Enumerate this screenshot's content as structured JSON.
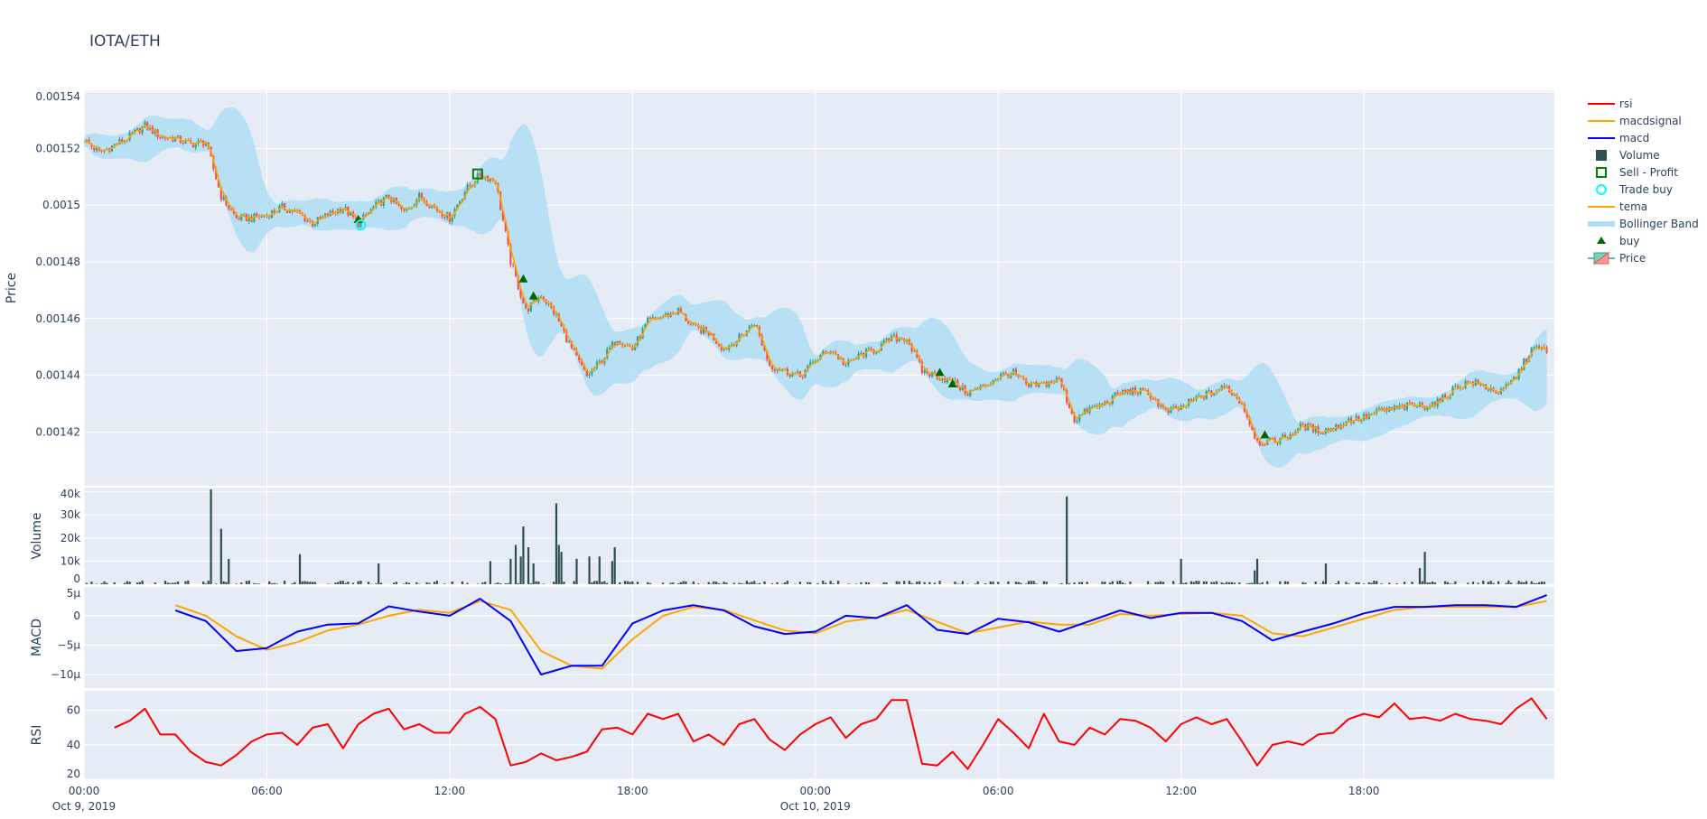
{
  "title": "IOTA/ETH",
  "colors": {
    "plot_bg": "#e5ecf6",
    "grid": "#ffffff",
    "candle_up": "#26a69a",
    "candle_down": "#ef5350",
    "tema": "#ffa500",
    "bollinger": "#b3dff5",
    "volume": "#2f4f4f",
    "macd": "#0000ff",
    "macdsignal": "#ffa500",
    "rsi": "#ff0000",
    "buy": "#006400",
    "sell_profit": "#008000",
    "trade_buy": "#00ffff"
  },
  "legend": [
    {
      "name": "rsi",
      "symbol": "line",
      "color": "#ff0000"
    },
    {
      "name": "macdsignal",
      "symbol": "line",
      "color": "#ffa500"
    },
    {
      "name": "macd",
      "symbol": "line",
      "color": "#0000ff"
    },
    {
      "name": "Volume",
      "symbol": "square-filled",
      "color": "#2f4f4f"
    },
    {
      "name": "Sell - Profit",
      "symbol": "square-open",
      "color": "#008000"
    },
    {
      "name": "Trade buy",
      "symbol": "circle-open",
      "color": "#00ffff"
    },
    {
      "name": "tema",
      "symbol": "line",
      "color": "#ffa500"
    },
    {
      "name": "Bollinger Band",
      "symbol": "band",
      "color": "#b3dff5"
    },
    {
      "name": "buy",
      "symbol": "triangle-up",
      "color": "#006400"
    },
    {
      "name": "Price",
      "symbol": "candlestick",
      "color": "#26a69a"
    }
  ],
  "chart_data": {
    "type": "candlestick",
    "title": "IOTA/ETH",
    "x_range": [
      "2019-10-09 00:00",
      "2019-10-11 00:15"
    ],
    "x_ticks": [
      {
        "time": "2019-10-09 00:00",
        "label": "00:00",
        "sub": "Oct 9, 2019"
      },
      {
        "time": "2019-10-09 06:00",
        "label": "06:00"
      },
      {
        "time": "2019-10-09 12:00",
        "label": "12:00"
      },
      {
        "time": "2019-10-09 18:00",
        "label": "18:00"
      },
      {
        "time": "2019-10-10 00:00",
        "label": "00:00",
        "sub": "Oct 10, 2019"
      },
      {
        "time": "2019-10-10 06:00",
        "label": "06:00"
      },
      {
        "time": "2019-10-10 12:00",
        "label": "12:00"
      },
      {
        "time": "2019-10-10 18:00",
        "label": "18:00"
      }
    ],
    "grid": true,
    "legend_position": "right",
    "panels": {
      "price": {
        "ylabel": "Price",
        "ylim": [
          0.001401,
          0.0015405
        ],
        "ticks": [
          {
            "v": 0.00142,
            "label": "0.00142"
          },
          {
            "v": 0.00144,
            "label": "0.00144"
          },
          {
            "v": 0.00146,
            "label": "0.00146"
          },
          {
            "v": 0.00148,
            "label": "0.00148"
          },
          {
            "v": 0.0015,
            "label": "0.0015"
          },
          {
            "v": 0.00152,
            "label": "0.00152"
          },
          {
            "v": 0.00154,
            "label": "0.00154"
          }
        ],
        "close": {
          "start": "2019-10-09 00:00",
          "interval_min": 30,
          "values": [
            0.0015231,
            0.0015185,
            0.0015212,
            0.0015242,
            0.0015281,
            0.0015242,
            0.0015235,
            0.0015215,
            0.0015223,
            0.0015031,
            0.0014954,
            0.0014954,
            0.0014965,
            0.0014992,
            0.0014973,
            0.0014935,
            0.0014965,
            0.0014992,
            0.0014935,
            0.0014992,
            0.0015031,
            0.0014973,
            0.0015031,
            0.0014992,
            0.0014954,
            0.001505,
            0.0015108,
            0.0015088,
            0.00148,
            0.0014627,
            0.0014685,
            0.0014608,
            0.0014492,
            0.0014396,
            0.0014454,
            0.0014531,
            0.0014492,
            0.0014588,
            0.0014608,
            0.0014627,
            0.0014569,
            0.001455,
            0.0014492,
            0.0014531,
            0.0014588,
            0.0014435,
            0.0014415,
            0.0014396,
            0.0014454,
            0.0014492,
            0.0014435,
            0.0014473,
            0.0014492,
            0.0014531,
            0.0014531,
            0.0014415,
            0.0014396,
            0.0014377,
            0.0014338,
            0.0014358,
            0.0014396,
            0.0014408,
            0.0014358,
            0.0014369,
            0.0014385,
            0.0014242,
            0.0014281,
            0.00143,
            0.0014338,
            0.0014346,
            0.0014331,
            0.0014269,
            0.0014285,
            0.0014319,
            0.0014338,
            0.0014358,
            0.00143,
            0.0014165,
            0.0014165,
            0.0014185,
            0.0014223,
            0.0014204,
            0.0014212,
            0.0014242,
            0.001425,
            0.0014273,
            0.0014281,
            0.0014292,
            0.0014292,
            0.0014308,
            0.0014358,
            0.0014377,
            0.0014358,
            0.0014338,
            0.0014396,
            0.0014492,
            0.0014492
          ]
        },
        "buy": [
          {
            "time": "2019-10-09 09:00",
            "price": 0.001495
          },
          {
            "time": "2019-10-09 14:25",
            "price": 0.001474
          },
          {
            "time": "2019-10-09 14:45",
            "price": 0.001468
          },
          {
            "time": "2019-10-10 04:05",
            "price": 0.001441
          },
          {
            "time": "2019-10-10 04:30",
            "price": 0.001437
          },
          {
            "time": "2019-10-10 14:45",
            "price": 0.001419
          }
        ],
        "trade_buy": [
          {
            "time": "2019-10-09 09:05",
            "price": 0.001493
          }
        ],
        "sell_profit": [
          {
            "time": "2019-10-09 12:55",
            "price": 0.001511
          }
        ]
      },
      "volume": {
        "ylabel": "Volume",
        "ylim": [
          0,
          41800
        ],
        "ticks": [
          {
            "v": 0,
            "label": "0"
          },
          {
            "v": 10000,
            "label": "10k"
          },
          {
            "v": 20000,
            "label": "20k"
          },
          {
            "v": 30000,
            "label": "30k"
          },
          {
            "v": 40000,
            "label": "40k"
          }
        ],
        "spikes": [
          [
            "2019-10-09 04:10",
            41000
          ],
          [
            "2019-10-09 04:30",
            24000
          ],
          [
            "2019-10-09 04:45",
            11000
          ],
          [
            "2019-10-09 07:05",
            13000
          ],
          [
            "2019-10-09 09:40",
            9000
          ],
          [
            "2019-10-09 13:20",
            10000
          ],
          [
            "2019-10-09 14:00",
            11000
          ],
          [
            "2019-10-09 14:10",
            17000
          ],
          [
            "2019-10-09 14:20",
            12000
          ],
          [
            "2019-10-09 14:25",
            25000
          ],
          [
            "2019-10-09 14:35",
            16000
          ],
          [
            "2019-10-09 14:45",
            9000
          ],
          [
            "2019-10-09 15:30",
            35000
          ],
          [
            "2019-10-09 15:35",
            17000
          ],
          [
            "2019-10-09 15:40",
            14000
          ],
          [
            "2019-10-09 16:10",
            11000
          ],
          [
            "2019-10-09 16:35",
            12000
          ],
          [
            "2019-10-09 16:55",
            12000
          ],
          [
            "2019-10-09 17:20",
            10000
          ],
          [
            "2019-10-09 17:25",
            16000
          ],
          [
            "2019-10-10 08:15",
            38000
          ],
          [
            "2019-10-10 12:00",
            11000
          ],
          [
            "2019-10-10 14:25",
            6000
          ],
          [
            "2019-10-10 14:30",
            11000
          ],
          [
            "2019-10-10 16:45",
            9000
          ],
          [
            "2019-10-10 19:50",
            7000
          ],
          [
            "2019-10-10 20:00",
            14000
          ]
        ]
      },
      "macd": {
        "ylabel": "MACD",
        "ylim": [
          -1.23e-05,
          4.9e-06
        ],
        "ticks": [
          {
            "v": 5e-06,
            "label": "5µ"
          },
          {
            "v": 0,
            "label": "0"
          },
          {
            "v": -5e-06,
            "label": "−5µ"
          },
          {
            "v": -1e-05,
            "label": "−10µ"
          }
        ],
        "start": "2019-10-09 03:00",
        "interval_min": 60,
        "macd": [
          9e-07,
          -9e-07,
          -6e-06,
          -5.5e-06,
          -2.7e-06,
          -1.5e-06,
          -1.3e-06,
          1.6e-06,
          7e-07,
          0,
          2.9e-06,
          -9e-07,
          -1e-05,
          -8.5e-06,
          -8.5e-06,
          -1.3e-06,
          9e-07,
          1.8e-06,
          9e-07,
          -1.8e-06,
          -3.1e-06,
          -2.7e-06,
          0,
          -4e-07,
          1.8e-06,
          -2.4e-06,
          -3.1e-06,
          -5e-07,
          -1.1e-06,
          -2.7e-06,
          -9e-07,
          9e-07,
          -4e-07,
          5e-07,
          5e-07,
          -9e-07,
          -4.2e-06,
          -2.7e-06,
          -1.3e-06,
          4e-07,
          1.5e-06,
          1.5e-06,
          1.8e-06,
          1.8e-06,
          1.5e-06,
          3.5e-06
        ],
        "macdsignal": [
          1.8e-06,
          0,
          -3.5e-06,
          -5.8e-06,
          -4.5e-06,
          -2.5e-06,
          -1.5e-06,
          0,
          1e-06,
          5e-07,
          2.5e-06,
          1e-06,
          -6e-06,
          -8.5e-06,
          -9e-06,
          -4e-06,
          0,
          1.5e-06,
          1e-06,
          -8e-07,
          -2.5e-06,
          -3e-06,
          -1e-06,
          -3e-07,
          1e-06,
          -1e-06,
          -3e-06,
          -2e-06,
          -1e-06,
          -1.5e-06,
          -1.5e-06,
          3e-07,
          0,
          3e-07,
          5e-07,
          0,
          -3e-06,
          -3.5e-06,
          -2e-06,
          -5e-07,
          1e-06,
          1.5e-06,
          1.5e-06,
          1.5e-06,
          1.5e-06,
          2.5e-06
        ]
      },
      "rsi": {
        "ylabel": "RSI",
        "ylim": [
          20,
          71.4
        ],
        "ticks": [
          {
            "v": 20,
            "label": "20"
          },
          {
            "v": 40,
            "label": "40"
          },
          {
            "v": 60,
            "label": "60"
          }
        ],
        "start": "2019-10-09 01:00",
        "interval_min": 30,
        "values": [
          50,
          54,
          61,
          46,
          46,
          36,
          30,
          28,
          34,
          42,
          46,
          47,
          40,
          50,
          52,
          38,
          52,
          58,
          61,
          49,
          52,
          47,
          47,
          58,
          62,
          55,
          28,
          30,
          35,
          31,
          33,
          36,
          49,
          50,
          46,
          58,
          55,
          58,
          42,
          46,
          40,
          52,
          55,
          43,
          37,
          46,
          52,
          56,
          44,
          52,
          55,
          66,
          66,
          29,
          28,
          36,
          26,
          40,
          55,
          47,
          38,
          58,
          42,
          40,
          50,
          46,
          55,
          54,
          50,
          42,
          52,
          56,
          52,
          55,
          42,
          28,
          40,
          42,
          40,
          46,
          47,
          55,
          58,
          56,
          64,
          55,
          56,
          54,
          58,
          55,
          54,
          52,
          61,
          67,
          55
        ]
      }
    }
  }
}
